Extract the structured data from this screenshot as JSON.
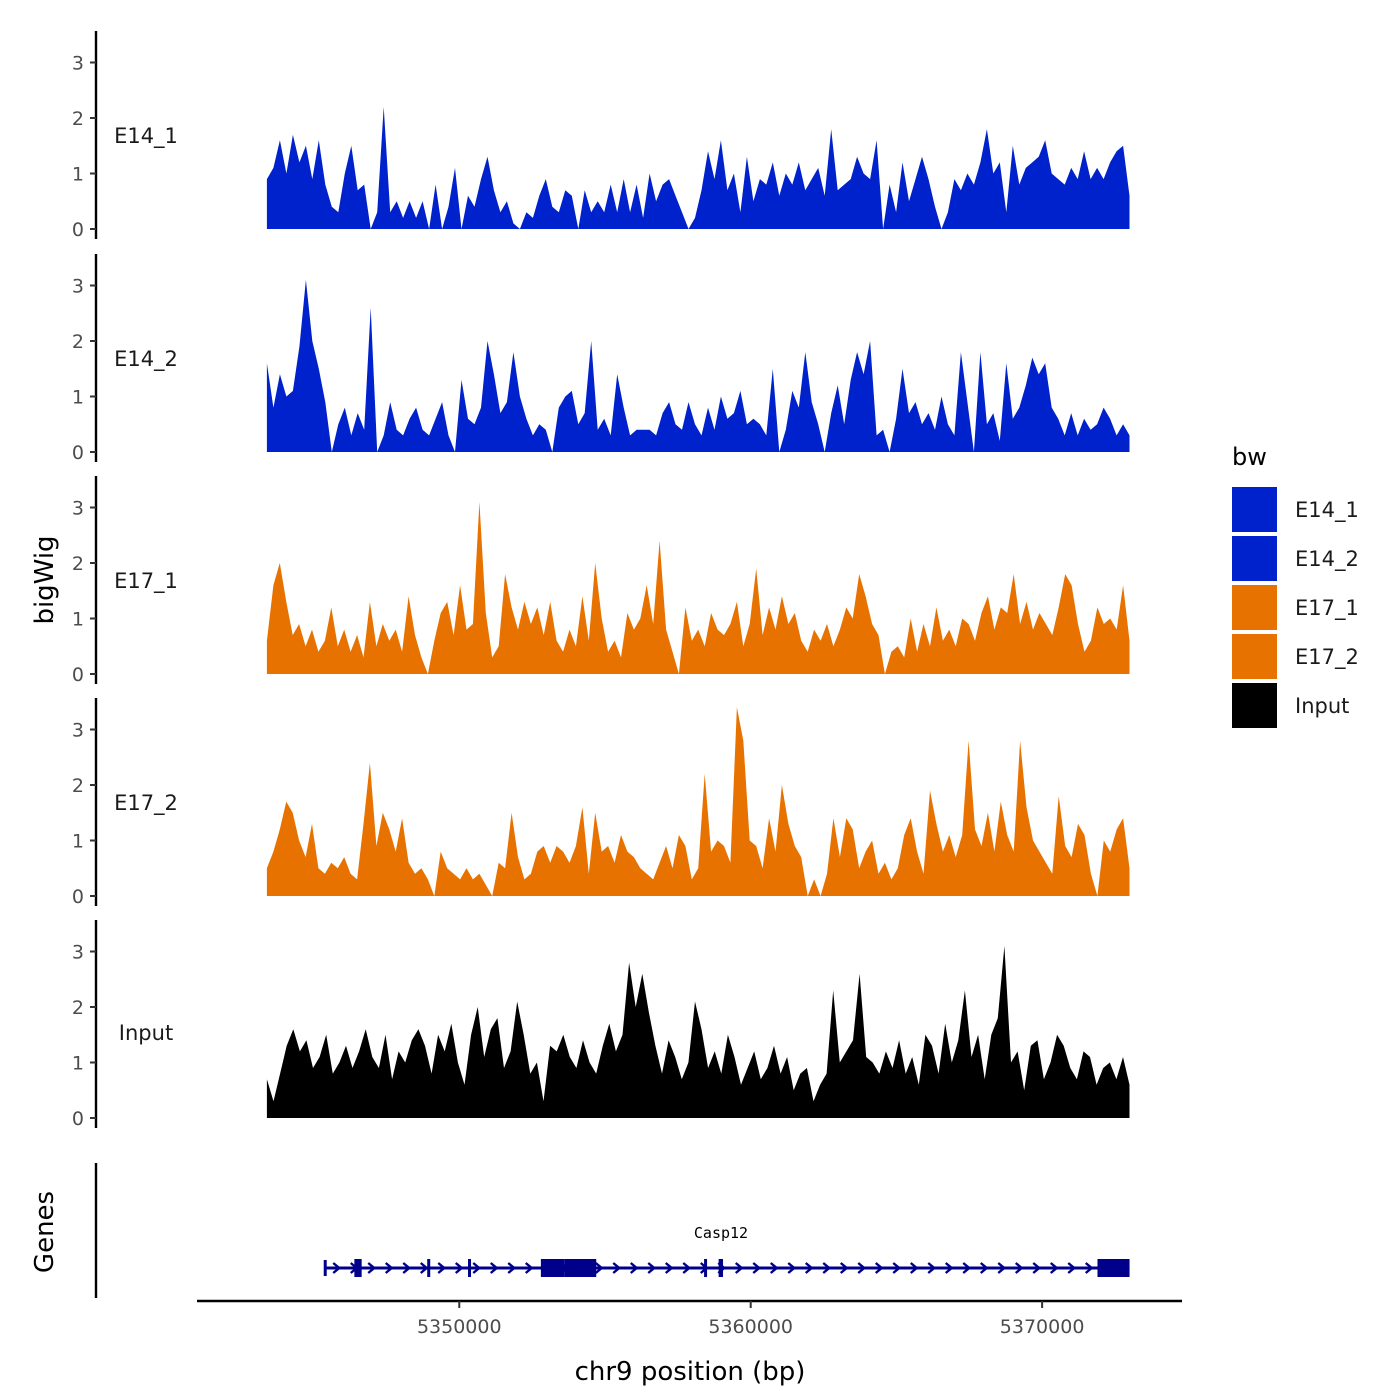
{
  "chart_data": {
    "type": "area",
    "title": "",
    "ylabel": "bigWig",
    "xlabel": "chr9 position (bp)",
    "x_range": [
      5343400,
      5373000
    ],
    "x_axis_range": [
      5341000,
      5374800
    ],
    "x_ticks": [
      5350000,
      5360000,
      5370000
    ],
    "x_tick_labels": [
      "5350000",
      "5360000",
      "5370000"
    ],
    "ylim": [
      0,
      3.5
    ],
    "y_ticks": [
      0,
      1,
      2,
      3
    ],
    "y_tick_labels": [
      "0",
      "1",
      "2",
      "3"
    ],
    "series": [
      {
        "name": "E14_1",
        "color": "#0022cc",
        "values": [
          0.9,
          1.1,
          1.6,
          1.0,
          1.7,
          1.2,
          1.5,
          0.9,
          1.6,
          0.8,
          0.4,
          0.3,
          1.0,
          1.5,
          0.7,
          0.8,
          0,
          0.3,
          2.2,
          0.3,
          0.5,
          0.2,
          0.5,
          0.2,
          0.5,
          0,
          0.8,
          0,
          0.4,
          1.1,
          0,
          0.6,
          0.4,
          0.9,
          1.3,
          0.7,
          0.3,
          0.5,
          0.1,
          0,
          0.3,
          0.2,
          0.6,
          0.9,
          0.4,
          0.3,
          0.7,
          0.6,
          0,
          0.7,
          0.3,
          0.5,
          0.3,
          0.8,
          0.3,
          0.9,
          0.3,
          0.8,
          0.2,
          1.0,
          0.5,
          0.8,
          0.9,
          0.6,
          0.3,
          0,
          0.2,
          0.7,
          1.4,
          0.9,
          1.6,
          0.7,
          1.0,
          0.3,
          1.3,
          0.5,
          0.9,
          0.8,
          1.2,
          0.6,
          1.0,
          0.8,
          1.2,
          0.7,
          0.9,
          1.1,
          0.6,
          1.8,
          0.7,
          0.8,
          0.9,
          1.3,
          1.0,
          0.9,
          1.6,
          0,
          0.8,
          0.3,
          1.2,
          0.5,
          0.9,
          1.3,
          0.9,
          0.4,
          0,
          0.3,
          0.9,
          0.7,
          1.0,
          0.8,
          1.2,
          1.8,
          1.0,
          1.2,
          0.3,
          1.5,
          0.8,
          1.1,
          1.2,
          1.3,
          1.6,
          1.0,
          0.9,
          0.8,
          1.1,
          0.9,
          1.4,
          0.9,
          1.1,
          0.9,
          1.2,
          1.4,
          1.5,
          0.6
        ]
      },
      {
        "name": "E14_2",
        "color": "#0022cc",
        "values": [
          1.6,
          0.8,
          1.4,
          1.0,
          1.1,
          1.9,
          3.1,
          2.0,
          1.5,
          0.9,
          0,
          0.5,
          0.8,
          0.3,
          0.7,
          0.4,
          2.6,
          0,
          0.3,
          0.9,
          0.4,
          0.3,
          0.6,
          0.8,
          0.4,
          0.3,
          0.6,
          0.9,
          0.3,
          0,
          1.3,
          0.6,
          0.5,
          0.8,
          2.0,
          1.4,
          0.7,
          0.9,
          1.8,
          1.0,
          0.6,
          0.3,
          0.5,
          0.4,
          0,
          0.8,
          1.0,
          1.1,
          0.5,
          0.7,
          2.0,
          0.4,
          0.6,
          0.3,
          1.4,
          0.8,
          0.3,
          0.4,
          0.4,
          0.4,
          0.3,
          0.7,
          0.9,
          0.5,
          0.4,
          0.9,
          0.5,
          0.3,
          0.8,
          0.4,
          1.0,
          0.6,
          0.7,
          1.1,
          0.5,
          0.6,
          0.5,
          0.3,
          1.5,
          0,
          0.4,
          1.1,
          0.8,
          1.8,
          0.9,
          0.5,
          0,
          0.7,
          1.2,
          0.5,
          1.3,
          1.8,
          1.4,
          2.0,
          0.3,
          0.4,
          0,
          0.6,
          1.5,
          0.7,
          0.9,
          0.5,
          0.7,
          0.4,
          1.0,
          0.5,
          0.3,
          1.8,
          0.9,
          0,
          1.8,
          0.5,
          0.7,
          0.2,
          1.6,
          0.6,
          0.8,
          1.2,
          1.7,
          1.4,
          1.6,
          0.8,
          0.6,
          0.3,
          0.7,
          0.3,
          0.6,
          0.4,
          0.5,
          0.8,
          0.6,
          0.3,
          0.5,
          0.3
        ]
      },
      {
        "name": "E17_1",
        "color": "#e87200",
        "values": [
          0.6,
          1.6,
          2.0,
          1.3,
          0.7,
          0.9,
          0.5,
          0.8,
          0.4,
          0.6,
          1.2,
          0.5,
          0.8,
          0.4,
          0.7,
          0.3,
          1.3,
          0.5,
          0.9,
          0.6,
          0.8,
          0.4,
          1.4,
          0.7,
          0.3,
          0,
          0.6,
          1.1,
          1.3,
          0.7,
          1.6,
          0.8,
          0.9,
          3.1,
          1.1,
          0.3,
          0.5,
          1.8,
          1.2,
          0.8,
          1.3,
          0.9,
          1.2,
          0.7,
          1.3,
          0.6,
          0.4,
          0.8,
          0.5,
          1.4,
          0.6,
          2.0,
          1.0,
          0.4,
          0.6,
          0.3,
          1.1,
          0.8,
          1.0,
          1.6,
          0.9,
          2.4,
          0.8,
          0.4,
          0,
          1.2,
          0.6,
          0.8,
          0.5,
          1.1,
          0.8,
          0.7,
          0.9,
          1.3,
          0.5,
          0.9,
          1.9,
          0.7,
          1.2,
          0.8,
          1.4,
          0.9,
          1.1,
          0.6,
          0.4,
          0.8,
          0.6,
          0.9,
          0.5,
          0.8,
          1.2,
          1.0,
          1.8,
          1.4,
          0.9,
          0.7,
          0,
          0.4,
          0.5,
          0.3,
          1.0,
          0.4,
          0.9,
          0.5,
          1.2,
          0.6,
          0.8,
          0.5,
          1.0,
          0.9,
          0.6,
          1.1,
          1.4,
          0.8,
          1.2,
          1.1,
          1.8,
          0.9,
          1.3,
          0.8,
          1.1,
          0.9,
          0.7,
          1.2,
          1.8,
          1.6,
          0.9,
          0.4,
          0.6,
          1.2,
          0.9,
          1.0,
          0.8,
          1.6,
          0.6
        ]
      },
      {
        "name": "E17_2",
        "color": "#e87200",
        "values": [
          0.5,
          0.8,
          1.2,
          1.7,
          1.5,
          1.0,
          0.7,
          1.3,
          0.5,
          0.4,
          0.6,
          0.5,
          0.7,
          0.4,
          0.3,
          1.3,
          2.4,
          0.9,
          1.5,
          1.2,
          0.8,
          1.4,
          0.6,
          0.4,
          0.5,
          0.3,
          0,
          0.8,
          0.5,
          0.4,
          0.3,
          0.5,
          0.3,
          0.4,
          0.2,
          0,
          0.6,
          0.5,
          1.5,
          0.7,
          0.3,
          0.4,
          0.8,
          0.9,
          0.6,
          0.9,
          0.8,
          0.6,
          0.9,
          1.6,
          0.4,
          1.5,
          0.8,
          0.9,
          0.6,
          1.1,
          0.8,
          0.7,
          0.5,
          0.4,
          0.3,
          0.6,
          0.9,
          0.5,
          1.1,
          0.9,
          0.3,
          0.5,
          2.2,
          0.8,
          1.0,
          0.9,
          0.6,
          3.4,
          2.8,
          1.0,
          0.9,
          0.5,
          1.4,
          0.8,
          2.0,
          1.3,
          0.9,
          0.7,
          0,
          0.3,
          0,
          0.4,
          1.4,
          0.7,
          1.4,
          1.2,
          0.5,
          0.8,
          1.0,
          0.4,
          0.6,
          0.3,
          0.5,
          1.1,
          1.4,
          0.8,
          0.4,
          1.9,
          1.3,
          0.8,
          1.1,
          0.7,
          1.1,
          2.8,
          1.2,
          0.9,
          1.5,
          0.8,
          1.7,
          1.1,
          0.8,
          2.8,
          1.6,
          1.0,
          0.8,
          0.6,
          0.4,
          1.8,
          0.9,
          0.7,
          1.3,
          1.1,
          0.4,
          0,
          1.0,
          0.8,
          1.2,
          1.4,
          0.5
        ]
      },
      {
        "name": "Input",
        "color": "#000000",
        "values": [
          0.7,
          0.3,
          0.8,
          1.3,
          1.6,
          1.2,
          1.4,
          0.9,
          1.1,
          1.5,
          0.8,
          1.0,
          1.3,
          0.9,
          1.2,
          1.6,
          1.1,
          0.9,
          1.5,
          0.7,
          1.2,
          1.0,
          1.4,
          1.6,
          1.3,
          0.8,
          1.5,
          1.2,
          1.7,
          1.0,
          0.6,
          1.5,
          2.0,
          1.1,
          1.6,
          1.8,
          0.9,
          1.2,
          2.1,
          1.5,
          0.8,
          1.0,
          0.3,
          1.3,
          1.2,
          1.5,
          1.1,
          0.9,
          1.4,
          1.0,
          0.8,
          1.3,
          1.7,
          1.2,
          1.5,
          2.8,
          2.0,
          2.6,
          1.9,
          1.3,
          0.8,
          1.4,
          1.1,
          0.7,
          1.0,
          2.1,
          1.6,
          0.9,
          1.2,
          0.8,
          1.5,
          1.1,
          0.6,
          0.9,
          1.2,
          0.7,
          0.9,
          1.3,
          0.8,
          1.1,
          0.5,
          0.8,
          0.9,
          0.3,
          0.6,
          0.8,
          2.3,
          1.0,
          1.2,
          1.4,
          2.6,
          1.1,
          1.0,
          0.8,
          1.2,
          0.9,
          1.4,
          0.8,
          1.1,
          0.6,
          1.5,
          1.3,
          0.8,
          1.7,
          1.0,
          1.4,
          2.3,
          1.1,
          1.5,
          0.7,
          1.5,
          1.8,
          3.1,
          1.0,
          1.2,
          0.5,
          1.3,
          1.4,
          0.7,
          1.0,
          1.5,
          1.3,
          0.9,
          0.7,
          1.2,
          1.1,
          0.6,
          0.9,
          1.0,
          0.7,
          1.1,
          0.6
        ]
      }
    ],
    "gene_track": {
      "label": "Genes",
      "gene_name": "Casp12",
      "color": "#00008b",
      "start": 5345400,
      "end": 5373000,
      "strand": "+",
      "exons": [
        [
          5346400,
          5346650
        ],
        [
          5348900,
          5349000
        ],
        [
          5350300,
          5350400
        ],
        [
          5352800,
          5353600
        ],
        [
          5353600,
          5354700
        ],
        [
          5358400,
          5358500
        ],
        [
          5358900,
          5359050
        ],
        [
          5371900,
          5373000
        ]
      ]
    }
  },
  "legend": {
    "title": "bw",
    "items": [
      {
        "label": "E14_1",
        "color": "#0022cc"
      },
      {
        "label": "E14_2",
        "color": "#0022cc"
      },
      {
        "label": "E17_1",
        "color": "#e87200"
      },
      {
        "label": "E17_2",
        "color": "#e87200"
      },
      {
        "label": "Input",
        "color": "#000000"
      }
    ]
  }
}
